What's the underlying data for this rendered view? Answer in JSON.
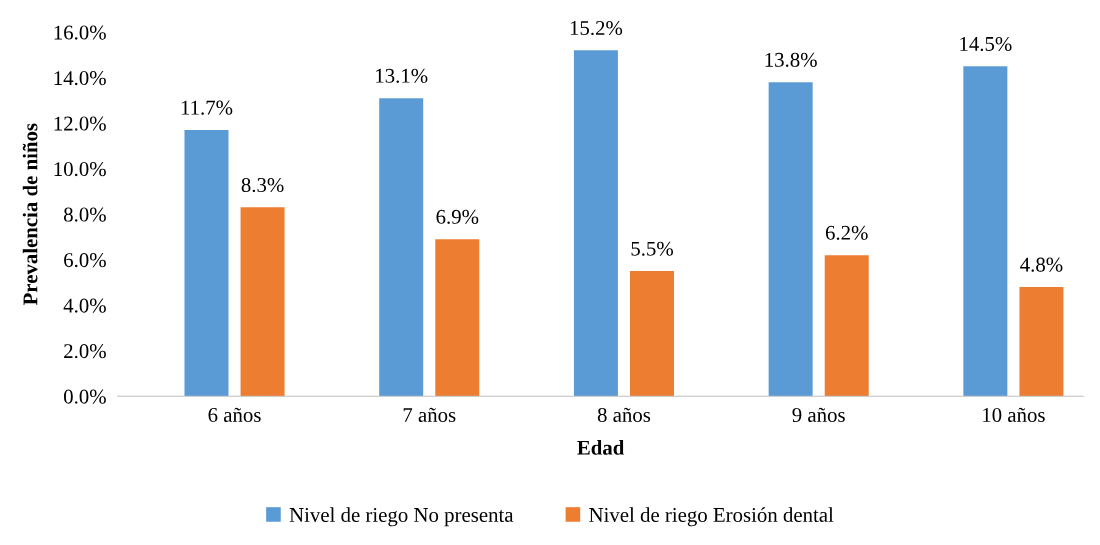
{
  "chart_data": {
    "type": "bar",
    "xlabel": "Edad",
    "ylabel": "Prevalencia de niños",
    "categories": [
      "6 años",
      "7 años",
      "8 años",
      "9 años",
      "10 años"
    ],
    "series": [
      {
        "name": "Nivel de riego No presenta",
        "color": "#5b9bd5",
        "values": [
          11.7,
          13.1,
          15.2,
          13.8,
          14.5
        ],
        "value_labels": [
          "11.7%",
          "13.1%",
          "15.2%",
          "13.8%",
          "14.5%"
        ]
      },
      {
        "name": "Nivel de riego Erosión dental",
        "color": "#ed7d31",
        "values": [
          8.3,
          6.9,
          5.5,
          6.2,
          4.8
        ],
        "value_labels": [
          "8.3%",
          "6.9%",
          "5.5%",
          "6.2%",
          "4.8%"
        ]
      }
    ],
    "ylim": [
      0,
      16
    ],
    "yticks": [
      {
        "value": 0,
        "label": "0.0%"
      },
      {
        "value": 2,
        "label": "2.0%"
      },
      {
        "value": 4,
        "label": "4.0%"
      },
      {
        "value": 6,
        "label": "6.0%"
      },
      {
        "value": 8,
        "label": "8.0%"
      },
      {
        "value": 10,
        "label": "10.0%"
      },
      {
        "value": 12,
        "label": "12.0%"
      },
      {
        "value": 14,
        "label": "14.0%"
      },
      {
        "value": 16,
        "label": "16.0%"
      }
    ],
    "grid": false,
    "legend": "bottom"
  }
}
